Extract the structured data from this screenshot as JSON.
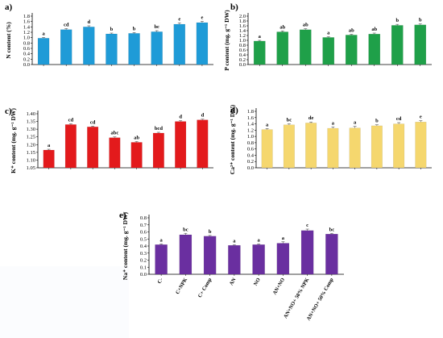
{
  "chart_data": [
    {
      "id": "a",
      "type": "bar",
      "panel_label": "a)",
      "ylabel": "N content (%)",
      "ylim": [
        0,
        1.8
      ],
      "yticks": [
        "0.0",
        "0.2",
        "0.4",
        "0.6",
        "0.8",
        "1.0",
        "1.2",
        "1.4",
        "1.6",
        "1.8"
      ],
      "values": [
        0.98,
        1.3,
        1.4,
        1.14,
        1.16,
        1.22,
        1.5,
        1.56
      ],
      "errors": [
        0.03,
        0.04,
        0.04,
        0.03,
        0.03,
        0.04,
        0.05,
        0.05
      ],
      "letters": [
        "a",
        "cd",
        "d",
        "b",
        "b",
        "bc",
        "e",
        "e"
      ],
      "color": "#1f9bd7",
      "grid": false
    },
    {
      "id": "b",
      "type": "bar",
      "panel_label": "b)",
      "ylabel": "P content (mg. g⁻¹ DW)",
      "ylim": [
        0,
        2.0
      ],
      "yticks": [
        "0.0",
        "0.2",
        "0.4",
        "0.6",
        "0.8",
        "1.0",
        "1.2",
        "1.4",
        "1.6",
        "1.8",
        "2.0"
      ],
      "values": [
        0.97,
        1.35,
        1.44,
        1.12,
        1.22,
        1.26,
        1.62,
        1.64
      ],
      "errors": [
        0.03,
        0.04,
        0.04,
        0.03,
        0.03,
        0.04,
        0.04,
        0.04
      ],
      "letters": [
        "a",
        "ab",
        "ab",
        "a",
        "ab",
        "ab",
        "b",
        "b"
      ],
      "color": "#1fa049",
      "grid": false
    },
    {
      "id": "c",
      "type": "bar",
      "panel_label": "c)",
      "ylabel": "K⁺ content (mg. g⁻¹ DW)",
      "ylim": [
        1.05,
        1.4
      ],
      "yticks": [
        "1.05",
        "1.10",
        "1.15",
        "1.20",
        "1.25",
        "1.30",
        "1.35",
        "1.40"
      ],
      "values": [
        1.165,
        1.33,
        1.315,
        1.245,
        1.215,
        1.275,
        1.35,
        1.36
      ],
      "errors": [
        0.005,
        0.005,
        0.005,
        0.005,
        0.005,
        0.005,
        0.005,
        0.005
      ],
      "letters": [
        "a",
        "cd",
        "cd",
        "abc",
        "ab",
        "bcd",
        "d",
        "d"
      ],
      "color": "#e31a1c",
      "grid": false
    },
    {
      "id": "d",
      "type": "bar",
      "panel_label": "d)",
      "ylabel": "Ca²⁺ content (mg. g⁻¹ DW)",
      "ylim": [
        0,
        1.8
      ],
      "yticks": [
        "0.0",
        "0.2",
        "0.4",
        "0.6",
        "0.8",
        "1.0",
        "1.2",
        "1.4",
        "1.6",
        "1.8"
      ],
      "values": [
        1.22,
        1.37,
        1.43,
        1.26,
        1.27,
        1.34,
        1.4,
        1.46
      ],
      "errors": [
        0.03,
        0.03,
        0.03,
        0.04,
        0.05,
        0.03,
        0.04,
        0.04
      ],
      "letters": [
        "a",
        "bc",
        "de",
        "a",
        "a",
        "b",
        "cd",
        "e"
      ],
      "color": "#f5d76e",
      "grid": false
    },
    {
      "id": "e",
      "type": "bar",
      "panel_label": "e)",
      "ylabel": "Na⁺ content (mg. g⁻¹ DW)",
      "ylim": [
        0,
        0.8
      ],
      "yticks": [
        "0.0",
        "0.1",
        "0.2",
        "0.3",
        "0.4",
        "0.5",
        "0.6",
        "0.7",
        "0.8"
      ],
      "categories": [
        "C-",
        "C+NPK",
        "C+ Comp",
        "AN",
        "NO",
        "AN+NO",
        "AN+NO+ 50% NPK",
        "AN+NO+ 50% Comp"
      ],
      "values": [
        0.42,
        0.56,
        0.54,
        0.41,
        0.42,
        0.44,
        0.62,
        0.57
      ],
      "errors": [
        0.01,
        0.02,
        0.01,
        0.01,
        0.01,
        0.02,
        0.02,
        0.01
      ],
      "letters": [
        "a",
        "bc",
        "b",
        "a",
        "a",
        "a",
        "c",
        "bc"
      ],
      "color": "#6a2fa0",
      "grid": false
    }
  ]
}
